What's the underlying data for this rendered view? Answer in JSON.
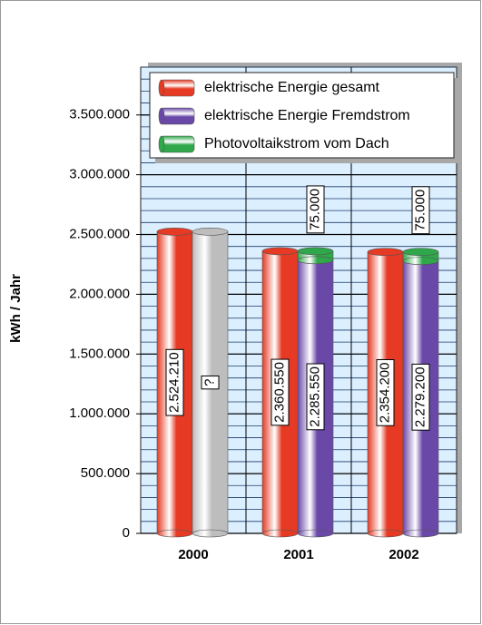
{
  "chart_data": {
    "type": "bar",
    "y_axis_label": "kWh / Jahr",
    "categories": [
      "2000",
      "2001",
      "2002"
    ],
    "series": [
      {
        "name": "elektrische Energie gesamt",
        "color": "#e63a24",
        "values": [
          2524210,
          2360550,
          2354200
        ],
        "value_labels": [
          "2.524.210",
          "2.360.550",
          "2.354.200"
        ]
      },
      {
        "name": "elektrische Energie Fremdstrom",
        "color": "#6a48a8",
        "values": [
          null,
          2285550,
          2279200
        ],
        "value_labels": [
          null,
          "2.285.550",
          "2.279.200"
        ]
      },
      {
        "name": "Photovoltaikstrom vom Dach",
        "color": "#2ea84a",
        "values": [
          null,
          75000,
          75000
        ],
        "value_labels": [
          null,
          "75.000",
          "75.000"
        ],
        "stacked_on": "elektrische Energie Fremdstrom"
      }
    ],
    "unknown_bar": {
      "category": "2000",
      "value": 2524210,
      "label": "?",
      "color": "#bdbdbd"
    },
    "ylim": [
      0,
      3900000
    ],
    "yticks": [
      0,
      {
        "value": 500000,
        "label": "500.000"
      },
      {
        "value": 1000000,
        "label": "1.000.000"
      },
      {
        "value": 1500000,
        "label": "1.500.000"
      },
      {
        "value": 2000000,
        "label": "2.000.000"
      },
      {
        "value": 2500000,
        "label": "2.500.000"
      },
      {
        "value": 3000000,
        "label": "3.000.000"
      },
      {
        "value": 3500000,
        "label": "3.500.000"
      }
    ],
    "minor_grid_step": 100000,
    "grid": true,
    "legend": "top"
  }
}
